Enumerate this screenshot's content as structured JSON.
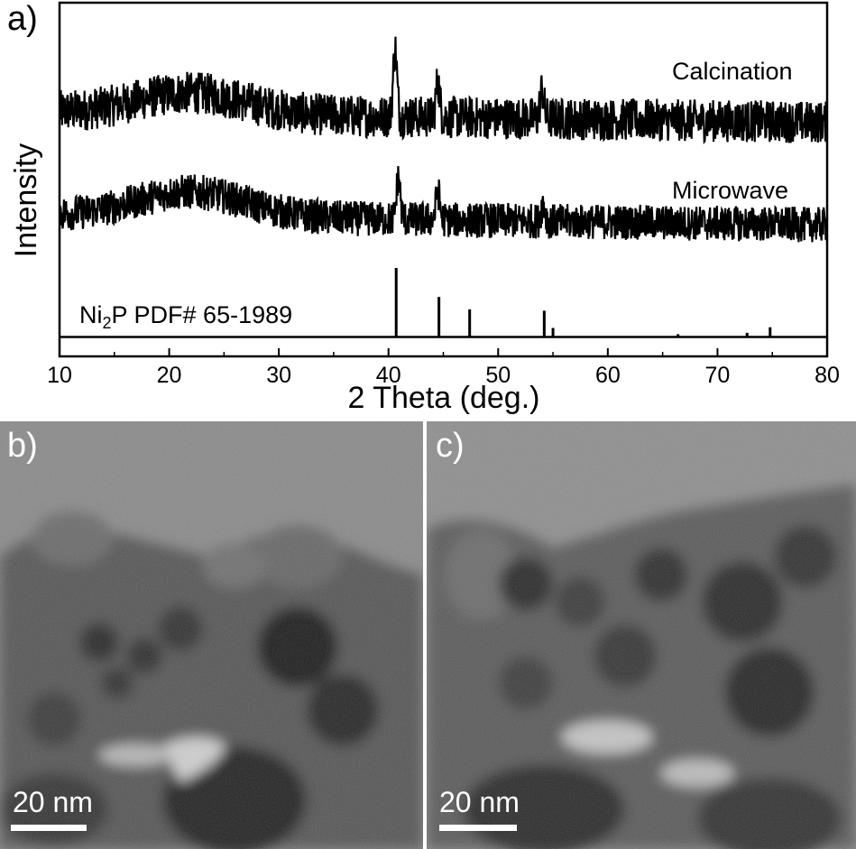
{
  "panels": {
    "a_label": "a)",
    "b_label": "b)",
    "c_label": "c)"
  },
  "chart_data": {
    "type": "line",
    "title": "",
    "xlabel": "2 Theta (deg.)",
    "ylabel": "Intensity",
    "xlim": [
      10,
      80
    ],
    "xticks": [
      10,
      20,
      30,
      40,
      50,
      60,
      70,
      80
    ],
    "ylim": [
      0,
      1
    ],
    "grid": false,
    "series": [
      {
        "name": "Calcination",
        "baseline": 0.69,
        "hump": {
          "center": 22,
          "width": 7,
          "height": 0.06
        },
        "peaks": [
          [
            40.6,
            0.19
          ],
          [
            44.5,
            0.1
          ],
          [
            54.0,
            0.08
          ]
        ],
        "noise": 0.06
      },
      {
        "name": "Microwave",
        "baseline": 0.4,
        "hump": {
          "center": 22,
          "width": 7,
          "height": 0.07
        },
        "peaks": [
          [
            40.9,
            0.12
          ],
          [
            44.5,
            0.08
          ],
          [
            54.1,
            0.05
          ]
        ],
        "noise": 0.05
      }
    ],
    "reference": {
      "name_prefix": "Ni",
      "name_sub": "2",
      "name_suffix": "P PDF# 65-1989",
      "lines": [
        [
          17.5,
          0.01
        ],
        [
          30.5,
          0.01
        ],
        [
          31.7,
          0.01
        ],
        [
          35.3,
          0.01
        ],
        [
          40.7,
          1.0
        ],
        [
          44.6,
          0.58
        ],
        [
          47.4,
          0.4
        ],
        [
          54.2,
          0.38
        ],
        [
          55.0,
          0.13
        ],
        [
          66.4,
          0.04
        ],
        [
          72.7,
          0.06
        ],
        [
          74.8,
          0.14
        ]
      ]
    }
  },
  "tem": {
    "b": {
      "scale_label": "20 nm"
    },
    "c": {
      "scale_label": "20 nm"
    }
  }
}
